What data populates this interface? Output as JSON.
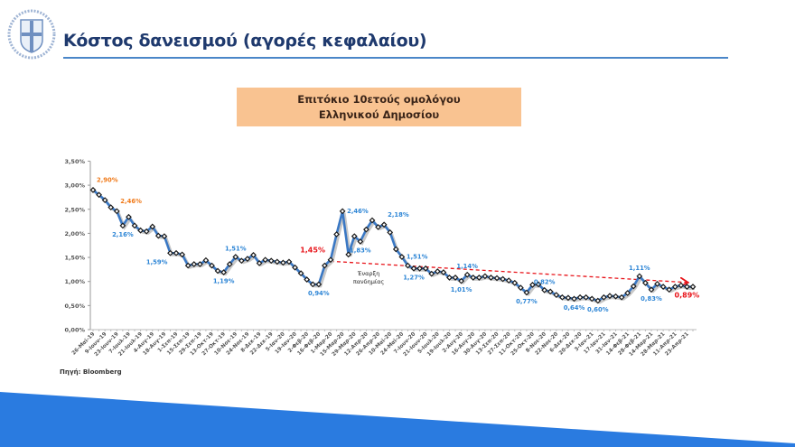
{
  "slide": {
    "title": "Κόστος δανεισμού (αγορές κεφαλαίου)",
    "source": "Πηγή: Bloomberg"
  },
  "colors": {
    "title": "#1f3a6e",
    "line": "#3a78c4",
    "marker": "#1a1a1a",
    "label_blue": "#2e86d6",
    "label_orange": "#f07a1a",
    "label_red": "#e8141a",
    "trend": "#e8141a",
    "box": "#f9c391",
    "band": "#2a7be0"
  },
  "chart_data": {
    "type": "line",
    "title_lines": [
      "Επιτόκιο 10ετούς ομολόγου",
      "Ελληνικού Δημοσίου"
    ],
    "ylim": [
      0,
      3.5
    ],
    "y_ticks": [
      "0,00%",
      "0,50%",
      "1,00%",
      "1,50%",
      "2,00%",
      "2,50%",
      "3,00%",
      "3,50%"
    ],
    "y_tick_values": [
      0,
      0.5,
      1,
      1.5,
      2,
      2.5,
      3,
      3.5
    ],
    "grid": false,
    "frequency": "weekly",
    "x_tick_labels": [
      "26-Μαϊ-19",
      "9-Ιουν-19",
      "23-Ιουν-19",
      "7-Ιουλ-19",
      "21-Ιουλ-19",
      "4-Αυγ-19",
      "18-Αυγ-19",
      "1-Σεπ-19",
      "15-Σεπ-19",
      "29-Σεπ-19",
      "13-Οκτ-19",
      "27-Οκτ-19",
      "10-Νοε-19",
      "24-Νοε-19",
      "8-Δεκ-19",
      "22-Δεκ-19",
      "5-Ιαν-20",
      "19-Ιαν-20",
      "2-Φεβ-20",
      "16-Φεβ-20",
      "1-Μαρ-20",
      "15-Μαρ-20",
      "29-Μαρ-20",
      "12-Απρ-20",
      "26-Απρ-20",
      "10-Μαϊ-20",
      "24-Μαϊ-20",
      "7-Ιουν-20",
      "21-Ιουν-20",
      "5-Ιουλ-20",
      "19-Ιουλ-20",
      "2-Αυγ-20",
      "16-Αυγ-20",
      "30-Αυγ-20",
      "13-Σεπ-20",
      "27-Σεπ-20",
      "11-Οκτ-20",
      "25-Οκτ-20",
      "8-Νοε-20",
      "22-Νοε-20",
      "6-Δεκ-20",
      "20-Δεκ-20",
      "3-Ιαν-21",
      "17-Ιαν-21",
      "31-Ιαν-21",
      "14-Φεβ-21",
      "28-Φεβ-21",
      "14-Μαρ-21",
      "28-Μαρ-21",
      "11-Απρ-21",
      "23-Απρ-21"
    ],
    "values": [
      2.9,
      2.8,
      2.69,
      2.54,
      2.46,
      2.16,
      2.34,
      2.16,
      2.06,
      2.04,
      2.14,
      1.95,
      1.94,
      1.59,
      1.59,
      1.56,
      1.33,
      1.36,
      1.36,
      1.44,
      1.33,
      1.22,
      1.19,
      1.36,
      1.51,
      1.43,
      1.47,
      1.55,
      1.38,
      1.45,
      1.43,
      1.41,
      1.39,
      1.41,
      1.29,
      1.17,
      1.04,
      0.94,
      0.94,
      1.33,
      1.45,
      1.98,
      2.46,
      1.56,
      1.94,
      1.83,
      2.08,
      2.27,
      2.13,
      2.18,
      2.02,
      1.67,
      1.51,
      1.33,
      1.27,
      1.27,
      1.27,
      1.16,
      1.21,
      1.19,
      1.08,
      1.08,
      1.01,
      1.14,
      1.08,
      1.08,
      1.11,
      1.08,
      1.07,
      1.05,
      1.02,
      0.97,
      0.87,
      0.77,
      0.93,
      0.94,
      0.82,
      0.79,
      0.72,
      0.67,
      0.66,
      0.64,
      0.67,
      0.67,
      0.64,
      0.6,
      0.67,
      0.7,
      0.69,
      0.67,
      0.76,
      0.9,
      1.11,
      0.97,
      0.83,
      0.95,
      0.89,
      0.83,
      0.89,
      0.92,
      0.89,
      0.89
    ],
    "annotations": [
      {
        "text": "2,90%",
        "index": 0,
        "color": "orange",
        "position": "above-right"
      },
      {
        "text": "2,46%",
        "index": 4,
        "color": "orange",
        "position": "above-right"
      },
      {
        "text": "2,16%",
        "index": 5,
        "color": "blue",
        "position": "below"
      },
      {
        "text": "1,59%",
        "index": 13,
        "color": "blue",
        "position": "below-left"
      },
      {
        "text": "1,51%",
        "index": 24,
        "color": "blue",
        "position": "above"
      },
      {
        "text": "1,19%",
        "index": 22,
        "color": "blue",
        "position": "below"
      },
      {
        "text": "1,45%",
        "index": 40,
        "color": "red",
        "position": "above-left"
      },
      {
        "text": "0,94%",
        "index": 38,
        "color": "blue",
        "position": "below"
      },
      {
        "text": "2,46%",
        "index": 42,
        "color": "blue",
        "position": "right"
      },
      {
        "text": "1,83%",
        "index": 45,
        "color": "blue",
        "position": "below"
      },
      {
        "text": "2,18%",
        "index": 49,
        "color": "blue",
        "position": "above-right"
      },
      {
        "text": "1,51%",
        "index": 52,
        "color": "blue",
        "position": "right"
      },
      {
        "text": "1,27%",
        "index": 54,
        "color": "blue",
        "position": "below"
      },
      {
        "text": "1,14%",
        "index": 63,
        "color": "blue",
        "position": "above"
      },
      {
        "text": "1,01%",
        "index": 62,
        "color": "blue",
        "position": "below"
      },
      {
        "text": "0,82%",
        "index": 76,
        "color": "blue",
        "position": "above"
      },
      {
        "text": "0,77%",
        "index": 73,
        "color": "blue",
        "position": "below"
      },
      {
        "text": "0,64%",
        "index": 81,
        "color": "blue",
        "position": "below"
      },
      {
        "text": "0,60%",
        "index": 85,
        "color": "blue",
        "position": "below"
      },
      {
        "text": "1,11%",
        "index": 92,
        "color": "blue",
        "position": "above"
      },
      {
        "text": "0,83%",
        "index": 94,
        "color": "blue",
        "position": "below"
      },
      {
        "text": "0,89%",
        "index": 100,
        "color": "red",
        "position": "below"
      }
    ],
    "event_label_lines": [
      "Έναρξη",
      "πανδημίας"
    ],
    "trend_line": {
      "start": {
        "x": "1-Μαρ-20",
        "y": 1.42
      },
      "end": {
        "x": "23-Απρ-21",
        "y": 0.98
      },
      "style": "dashed-arrow"
    }
  }
}
